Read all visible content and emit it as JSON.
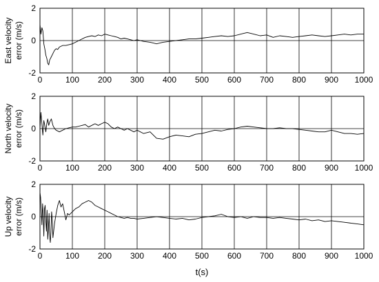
{
  "chart_data": [
    {
      "type": "line",
      "ylabel": [
        "East velocity",
        "error (m/s)"
      ],
      "xlim": [
        0,
        1000
      ],
      "ylim": [
        -2,
        2
      ],
      "xticks": [
        0,
        100,
        200,
        300,
        400,
        500,
        600,
        700,
        800,
        900,
        1000
      ],
      "yticks": [
        -2,
        0,
        2
      ],
      "grid": "vertical lines at x ticks, horizontal line at 0",
      "series": [
        {
          "x": [
            0,
            3,
            6,
            9,
            12,
            15,
            18,
            21,
            24,
            27,
            30,
            35,
            40,
            45,
            50,
            55,
            60,
            70,
            80,
            90,
            100,
            110,
            120,
            130,
            140,
            150,
            160,
            170,
            180,
            190,
            200,
            210,
            220,
            230,
            240,
            250,
            260,
            270,
            280,
            290,
            300,
            320,
            340,
            360,
            380,
            400,
            420,
            440,
            460,
            480,
            500,
            520,
            540,
            560,
            580,
            600,
            620,
            640,
            660,
            680,
            700,
            720,
            740,
            760,
            780,
            800,
            820,
            840,
            860,
            880,
            900,
            920,
            940,
            960,
            980,
            1000
          ],
          "y": [
            1.0,
            0.4,
            0.8,
            0.6,
            -0.2,
            -0.5,
            -0.9,
            -1.1,
            -1.4,
            -1.5,
            -1.2,
            -1.0,
            -0.8,
            -0.6,
            -0.5,
            -0.55,
            -0.4,
            -0.3,
            -0.3,
            -0.25,
            -0.2,
            -0.1,
            0.0,
            0.1,
            0.2,
            0.25,
            0.3,
            0.25,
            0.35,
            0.3,
            0.4,
            0.35,
            0.3,
            0.25,
            0.2,
            0.1,
            0.15,
            0.1,
            0.05,
            0.0,
            0.05,
            -0.05,
            -0.1,
            -0.2,
            -0.1,
            -0.05,
            0.0,
            0.05,
            0.1,
            0.1,
            0.15,
            0.2,
            0.25,
            0.3,
            0.25,
            0.3,
            0.4,
            0.5,
            0.4,
            0.3,
            0.35,
            0.2,
            0.3,
            0.25,
            0.2,
            0.25,
            0.3,
            0.35,
            0.3,
            0.25,
            0.3,
            0.35,
            0.4,
            0.35,
            0.4,
            0.4
          ]
        }
      ]
    },
    {
      "type": "line",
      "ylabel": [
        "North velocity",
        "error (m/s)"
      ],
      "xlim": [
        0,
        1000
      ],
      "ylim": [
        -2,
        2
      ],
      "xticks": [
        0,
        100,
        200,
        300,
        400,
        500,
        600,
        700,
        800,
        900,
        1000
      ],
      "yticks": [
        -2,
        0,
        2
      ],
      "grid": "vertical lines at x ticks, horizontal line at 0",
      "series": [
        {
          "x": [
            0,
            3,
            6,
            9,
            12,
            15,
            18,
            21,
            24,
            27,
            30,
            35,
            40,
            45,
            50,
            60,
            70,
            80,
            90,
            100,
            110,
            120,
            130,
            140,
            150,
            160,
            170,
            180,
            190,
            200,
            210,
            220,
            230,
            240,
            250,
            260,
            270,
            280,
            290,
            300,
            320,
            340,
            360,
            380,
            400,
            420,
            440,
            460,
            480,
            500,
            520,
            540,
            560,
            580,
            600,
            620,
            640,
            660,
            680,
            700,
            720,
            740,
            760,
            780,
            800,
            820,
            840,
            860,
            880,
            900,
            920,
            940,
            960,
            980,
            1000
          ],
          "y": [
            0.0,
            1.0,
            0.3,
            -0.4,
            0.5,
            0.2,
            -0.2,
            0.3,
            0.6,
            0.2,
            0.4,
            0.6,
            0.2,
            0.0,
            -0.1,
            -0.2,
            -0.1,
            0.0,
            0.05,
            0.1,
            0.1,
            0.15,
            0.2,
            0.25,
            0.1,
            0.2,
            0.3,
            0.2,
            0.3,
            0.4,
            0.3,
            0.1,
            0.0,
            0.1,
            0.0,
            -0.1,
            0.0,
            -0.1,
            -0.2,
            -0.1,
            -0.3,
            -0.2,
            -0.6,
            -0.65,
            -0.5,
            -0.4,
            -0.45,
            -0.5,
            -0.35,
            -0.3,
            -0.2,
            -0.1,
            -0.15,
            -0.05,
            0.0,
            0.1,
            0.15,
            0.1,
            0.05,
            0.0,
            0.0,
            0.05,
            0.0,
            0.0,
            -0.05,
            -0.1,
            -0.15,
            -0.2,
            -0.2,
            -0.1,
            -0.2,
            -0.3,
            -0.3,
            -0.35,
            -0.3
          ]
        }
      ]
    },
    {
      "type": "line",
      "ylabel": [
        "Up velocity",
        "error (m/s)"
      ],
      "xlabel": "t(s)",
      "xlim": [
        0,
        1000
      ],
      "ylim": [
        -2,
        2
      ],
      "xticks": [
        0,
        100,
        200,
        300,
        400,
        500,
        600,
        700,
        800,
        900,
        1000
      ],
      "yticks": [
        -2,
        0,
        2
      ],
      "grid": "vertical lines at x ticks, horizontal line at 0",
      "series": [
        {
          "x": [
            0,
            2,
            4,
            6,
            8,
            10,
            12,
            14,
            16,
            18,
            20,
            22,
            24,
            26,
            28,
            30,
            32,
            34,
            36,
            38,
            40,
            45,
            50,
            55,
            60,
            65,
            70,
            75,
            80,
            85,
            90,
            100,
            110,
            120,
            130,
            140,
            150,
            160,
            170,
            180,
            190,
            200,
            210,
            220,
            230,
            240,
            250,
            260,
            270,
            280,
            290,
            300,
            320,
            340,
            360,
            380,
            400,
            420,
            440,
            460,
            480,
            500,
            520,
            540,
            560,
            580,
            600,
            620,
            640,
            660,
            680,
            700,
            720,
            740,
            760,
            780,
            800,
            820,
            840,
            860,
            880,
            900,
            920,
            940,
            960,
            980,
            1000
          ],
          "y": [
            1.5,
            1.2,
            0.3,
            -0.5,
            0.8,
            0.2,
            -1.2,
            0.5,
            0.7,
            -0.3,
            -0.9,
            0.4,
            -1.4,
            -0.8,
            0.2,
            -1.2,
            -1.6,
            -0.9,
            0.3,
            -0.2,
            -1.3,
            -0.4,
            0.2,
            0.7,
            1.0,
            0.6,
            0.8,
            0.3,
            -0.2,
            0.2,
            0.1,
            0.3,
            0.5,
            0.6,
            0.8,
            0.9,
            1.0,
            0.9,
            0.7,
            0.6,
            0.5,
            0.4,
            0.3,
            0.2,
            0.1,
            0.0,
            -0.05,
            -0.1,
            -0.05,
            -0.1,
            -0.1,
            -0.15,
            -0.1,
            -0.05,
            0.0,
            -0.05,
            -0.1,
            -0.15,
            -0.1,
            -0.2,
            -0.15,
            -0.05,
            0.0,
            0.05,
            0.15,
            0.0,
            -0.05,
            0.0,
            -0.1,
            0.0,
            -0.05,
            -0.05,
            -0.1,
            -0.05,
            -0.1,
            -0.15,
            -0.2,
            -0.15,
            -0.25,
            -0.2,
            -0.3,
            -0.25,
            -0.3,
            -0.35,
            -0.4,
            -0.45,
            -0.5
          ]
        }
      ]
    }
  ]
}
